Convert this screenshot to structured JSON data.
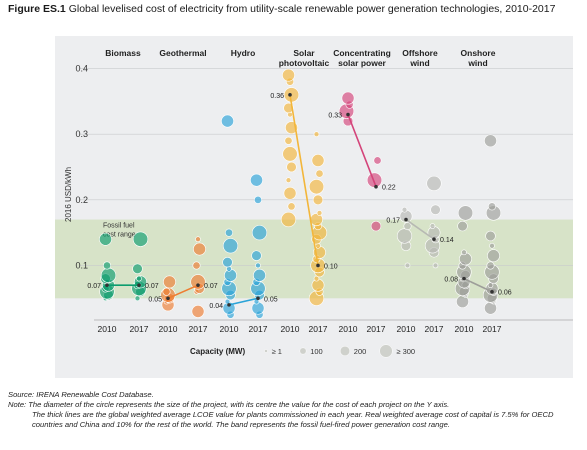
{
  "figure": {
    "label": "Figure ES.1",
    "title": "Global levelised cost of electricity from utility-scale renewable power generation technologies, 2010-2017"
  },
  "chart_data": {
    "type": "scatter",
    "ylabel": "2016 USD/kWh",
    "ylim": [
      0,
      0.42
    ],
    "yticks": [
      0.1,
      0.2,
      0.3,
      0.4
    ],
    "yticklabels": [
      "0.1",
      "0.2",
      "0.3",
      "0.4"
    ],
    "band": {
      "label_line1": "Fossil fuel",
      "label_line2": "cost range",
      "range": [
        0.05,
        0.17
      ],
      "color": "#d7e3c8"
    },
    "years": [
      "2010",
      "2017"
    ],
    "series": [
      {
        "name": "Biomass",
        "color": "#0c9d6e",
        "values": [
          0.07,
          0.07
        ],
        "labels": [
          "0.07",
          "0.07"
        ],
        "points_2010": [
          0.05,
          0.055,
          0.06,
          0.065,
          0.07,
          0.075,
          0.08,
          0.085,
          0.1,
          0.14
        ],
        "points_2017": [
          0.05,
          0.06,
          0.065,
          0.07,
          0.075,
          0.08,
          0.095,
          0.14
        ]
      },
      {
        "name": "Geothermal",
        "color": "#ee7d31",
        "values": [
          0.05,
          0.07
        ],
        "labels": [
          "0.05",
          "0.07"
        ],
        "points_2010": [
          0.04,
          0.045,
          0.05,
          0.055,
          0.06,
          0.075
        ],
        "points_2017": [
          0.03,
          0.06,
          0.065,
          0.075,
          0.1,
          0.125,
          0.14
        ]
      },
      {
        "name": "Hydro",
        "color": "#2aa3d8",
        "values": [
          0.04,
          0.05
        ],
        "labels": [
          "0.04",
          "0.05"
        ],
        "points_2010": [
          0.025,
          0.035,
          0.045,
          0.055,
          0.065,
          0.075,
          0.085,
          0.095,
          0.105,
          0.13,
          0.15,
          0.32
        ],
        "points_2017": [
          0.025,
          0.035,
          0.045,
          0.055,
          0.065,
          0.075,
          0.085,
          0.1,
          0.115,
          0.15,
          0.2,
          0.23
        ]
      },
      {
        "name": "Solar photovoltaic",
        "color": "#f3b63a",
        "values": [
          0.36,
          0.1
        ],
        "labels": [
          "0.36",
          "0.10"
        ],
        "points_2010": [
          0.17,
          0.19,
          0.21,
          0.23,
          0.25,
          0.27,
          0.29,
          0.31,
          0.33,
          0.34,
          0.36,
          0.38,
          0.39
        ],
        "points_2017": [
          0.05,
          0.06,
          0.07,
          0.08,
          0.09,
          0.1,
          0.11,
          0.12,
          0.13,
          0.14,
          0.15,
          0.16,
          0.17,
          0.18,
          0.2,
          0.22,
          0.24,
          0.26,
          0.3
        ]
      },
      {
        "name": "Concentrating solar power",
        "color": "#d4447a",
        "values": [
          0.33,
          0.22
        ],
        "labels": [
          "0.33",
          "0.22"
        ],
        "points_2010": [
          0.32,
          0.335,
          0.345,
          0.355
        ],
        "points_2017": [
          0.16,
          0.23,
          0.26
        ]
      },
      {
        "name": "Offshore wind",
        "color": "#b7b9b3",
        "values": [
          0.17,
          0.14
        ],
        "labels": [
          "0.17",
          "0.14"
        ],
        "points_2010": [
          0.1,
          0.13,
          0.145,
          0.16,
          0.175,
          0.185
        ],
        "points_2017": [
          0.1,
          0.12,
          0.13,
          0.14,
          0.15,
          0.16,
          0.185,
          0.225
        ]
      },
      {
        "name": "Onshore wind",
        "color": "#9d9e99",
        "values": [
          0.08,
          0.06
        ],
        "labels": [
          "0.08",
          "0.06"
        ],
        "points_2010": [
          0.045,
          0.055,
          0.06,
          0.065,
          0.07,
          0.075,
          0.08,
          0.085,
          0.09,
          0.1,
          0.11,
          0.12,
          0.16,
          0.18
        ],
        "points_2017": [
          0.035,
          0.045,
          0.05,
          0.055,
          0.06,
          0.065,
          0.07,
          0.08,
          0.09,
          0.1,
          0.115,
          0.13,
          0.145,
          0.18,
          0.19,
          0.29
        ]
      }
    ],
    "category_labels": [
      [
        "Biomass"
      ],
      [
        "Geothermal"
      ],
      [
        "Hydro"
      ],
      [
        "Solar",
        "photovoltaic"
      ],
      [
        "Concentrating",
        "solar power"
      ],
      [
        "Offshore",
        "wind"
      ],
      [
        "Onshore",
        "wind"
      ]
    ],
    "size_legend": {
      "title": "Capacity (MW)",
      "items": [
        "≥ 1",
        "100",
        "200",
        "≥ 300"
      ]
    }
  },
  "notes": {
    "source": "Source: IRENA Renewable Cost Database.",
    "note": "Note: The diameter of the circle represents the size of the project, with its centre the value for the cost of each project on the Y axis.",
    "note_body": "The thick lines are the global weighted average LCOE value for plants commissioned in each year. Real weighted average cost of capital is 7.5% for OECD countries and China and 10% for the rest of the world. The band represents the fossil fuel-fired power generation cost range."
  }
}
